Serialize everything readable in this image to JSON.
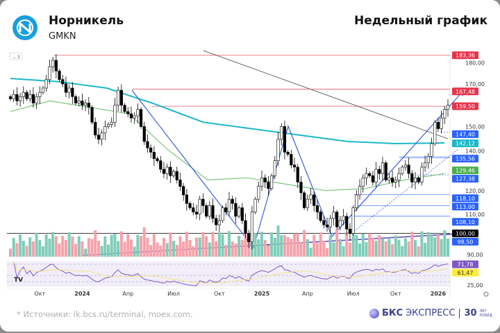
{
  "header": {
    "company": "Норникель",
    "ticker": "GMKN",
    "chart_type": "Недельный график"
  },
  "footer": {
    "sources": "* Источники: lk.bcs.ru/terminal, moex.com.",
    "brand": "БКС",
    "brand2": "ЭКСПРЕСС",
    "brand3": "30",
    "brand4": "ЛЕТ ПОБЕД"
  },
  "chart_data": {
    "type": "candlestick",
    "title": "Недельный график",
    "interval": "weekly",
    "ylim": [
      86,
      186
    ],
    "closes": [
      163,
      165,
      162,
      164,
      166,
      163,
      165,
      161,
      164,
      166,
      168,
      172,
      178,
      181,
      176,
      172,
      170,
      166,
      168,
      164,
      161,
      162,
      160,
      161,
      159,
      152,
      146,
      144,
      147,
      150,
      151,
      152,
      160,
      167,
      160,
      157,
      156,
      154,
      155,
      158,
      150,
      143,
      140,
      138,
      135,
      134,
      130,
      128,
      131,
      127,
      129,
      125,
      122,
      118,
      114,
      112,
      110,
      109,
      116,
      113,
      108,
      113,
      107,
      104,
      106,
      112,
      110,
      116,
      114,
      108,
      112,
      106,
      100,
      96,
      110,
      116,
      122,
      126,
      124,
      121,
      127,
      134,
      144,
      150,
      138,
      137,
      132,
      131,
      124,
      119,
      112,
      116,
      118,
      113,
      110,
      106,
      104,
      103,
      107,
      110,
      103,
      106,
      108,
      102,
      100,
      112,
      118,
      122,
      126,
      128,
      127,
      124,
      130,
      128,
      133,
      125,
      126,
      124,
      125,
      128,
      131,
      132,
      128,
      124,
      126,
      124,
      131,
      133,
      136,
      142,
      152,
      149,
      154,
      158,
      160
    ],
    "ma_long": [
      172.5,
      171,
      168,
      160.5,
      152,
      149,
      146,
      143,
      142,
      142.3
    ],
    "ma_short": [
      157,
      162,
      159,
      156,
      139,
      125,
      126,
      123,
      120,
      121,
      125,
      128
    ],
    "price_ticks": [
      180,
      170,
      150,
      140,
      120,
      110,
      90
    ],
    "levels": [
      {
        "value": 183.36,
        "label": "183,36",
        "color": "#e8344a"
      },
      {
        "value": 167.48,
        "label": "167,48",
        "color": "#e8344a"
      },
      {
        "value": 159.5,
        "label": "159,50",
        "color": "#e8344a"
      },
      {
        "value": 147.4,
        "label": "147,40",
        "color": "#2962ff"
      },
      {
        "value": 142.12,
        "label": "142,12",
        "color": "#1bb8c8"
      },
      {
        "value": 135.56,
        "label": "135,56",
        "color": "#2962ff"
      },
      {
        "value": 129.46,
        "label": "129,46",
        "color": "#4caf50"
      },
      {
        "value": 127.38,
        "label": "127,38",
        "color": "#2962ff"
      },
      {
        "value": 118.1,
        "label": "118,10",
        "color": "#2962ff"
      },
      {
        "value": 113.0,
        "label": "113,00",
        "color": "#2962ff"
      },
      {
        "value": 108.1,
        "label": "108,10",
        "color": "#2962ff"
      },
      {
        "value": 100.0,
        "label": "100,00",
        "color": "#000000"
      },
      {
        "value": 98.5,
        "label": "98,50",
        "color": "#2962ff"
      }
    ],
    "rsi": {
      "labels": [
        {
          "text": "71,78",
          "color": "#7e57c2"
        },
        {
          "text": "61,47",
          "color": "#ffeb3b"
        }
      ],
      "bottom_tick": "25,00"
    },
    "x_ticks": [
      {
        "label": "Окт",
        "week": 9
      },
      {
        "label": "2024",
        "week": 22
      },
      {
        "label": "Апр",
        "week": 36
      },
      {
        "label": "Июл",
        "week": 50
      },
      {
        "label": "Окт",
        "week": 64
      },
      {
        "label": "2025",
        "week": 77
      },
      {
        "label": "Апр",
        "week": 91
      },
      {
        "label": "Июл",
        "week": 105
      },
      {
        "label": "Окт",
        "week": 118
      },
      {
        "label": "2026",
        "week": 131
      }
    ],
    "legend_toggle": "3",
    "colors": {
      "up": "#ffffff",
      "down": "#000000",
      "vol_up": "#7fcdb8",
      "vol_down": "#f7a1aa",
      "ma_long": "#1bb8c8",
      "ma_short": "#7cc47c",
      "rsi": "#7e57c2"
    }
  }
}
